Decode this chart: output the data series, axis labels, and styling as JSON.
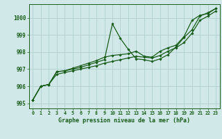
{
  "background_color": "#d0e8e8",
  "grid_color": "#b0d0d0",
  "line_color": "#1a5c1a",
  "marker_color": "#1a5c1a",
  "title": "Graphe pression niveau de la mer (hPa)",
  "xlim": [
    -0.5,
    23.5
  ],
  "ylim": [
    994.7,
    1000.8
  ],
  "yticks": [
    995,
    996,
    997,
    998,
    999,
    1000
  ],
  "xticks": [
    0,
    1,
    2,
    3,
    4,
    5,
    6,
    7,
    8,
    9,
    10,
    11,
    12,
    13,
    14,
    15,
    16,
    17,
    18,
    19,
    20,
    21,
    22,
    23
  ],
  "series1": [
    995.2,
    996.0,
    996.1,
    996.85,
    996.9,
    997.0,
    997.1,
    997.25,
    997.4,
    997.55,
    999.65,
    998.8,
    998.15,
    997.6,
    997.55,
    997.45,
    997.6,
    997.85,
    998.3,
    998.85,
    999.3,
    1000.1,
    1000.3,
    1000.55
  ],
  "series2": [
    995.2,
    996.0,
    996.1,
    996.85,
    996.9,
    997.05,
    997.2,
    997.35,
    997.5,
    997.7,
    997.8,
    997.85,
    997.9,
    998.05,
    997.75,
    997.7,
    998.05,
    998.25,
    998.4,
    998.9,
    999.85,
    1000.15,
    1000.25,
    1000.55
  ],
  "series3": [
    995.2,
    996.0,
    996.1,
    996.7,
    996.8,
    996.9,
    997.0,
    997.1,
    997.2,
    997.35,
    997.45,
    997.55,
    997.65,
    997.75,
    997.7,
    997.65,
    997.8,
    998.05,
    998.25,
    998.55,
    999.1,
    999.85,
    1000.1,
    1000.4
  ]
}
